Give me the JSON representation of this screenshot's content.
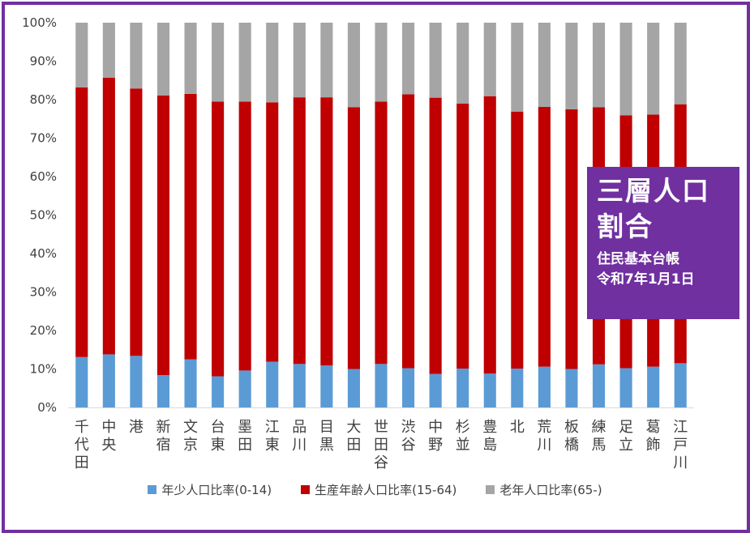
{
  "chart_data": {
    "type": "bar",
    "stacked": true,
    "percent": true,
    "categories": [
      "千代田",
      "中央",
      "港",
      "新宿",
      "文京",
      "台東",
      "墨田",
      "江東",
      "品川",
      "目黒",
      "大田",
      "世田谷",
      "渋谷",
      "中野",
      "杉並",
      "豊島",
      "北",
      "荒川",
      "板橋",
      "練馬",
      "足立",
      "葛飾",
      "江戸川"
    ],
    "series": [
      {
        "name": "年少人口比率(0-14)",
        "color": "#5B9BD5",
        "values": [
          13.1,
          13.8,
          13.4,
          8.4,
          12.5,
          8.1,
          9.6,
          11.9,
          11.3,
          10.9,
          10.0,
          11.3,
          10.2,
          8.7,
          10.1,
          8.8,
          10.1,
          10.6,
          10.0,
          11.2,
          10.2,
          10.6,
          11.5
        ]
      },
      {
        "name": "生産年齢人口比率(15-64)",
        "color": "#C00000",
        "values": [
          70.1,
          71.9,
          69.5,
          72.7,
          69.0,
          71.4,
          69.9,
          67.4,
          69.3,
          69.7,
          68.0,
          68.2,
          71.2,
          71.8,
          68.9,
          72.1,
          66.8,
          67.5,
          67.5,
          66.8,
          65.7,
          65.5,
          67.3
        ]
      },
      {
        "name": "老年人口比率(65-)",
        "color": "#A5A5A5",
        "values": [
          16.8,
          14.3,
          17.1,
          18.9,
          18.5,
          20.5,
          20.5,
          20.7,
          19.4,
          19.4,
          22.0,
          20.5,
          18.6,
          19.5,
          21.0,
          19.1,
          23.1,
          21.9,
          22.5,
          22.0,
          24.1,
          23.9,
          21.2
        ]
      }
    ],
    "yticks": [
      "0%",
      "10%",
      "20%",
      "30%",
      "40%",
      "50%",
      "60%",
      "70%",
      "80%",
      "90%",
      "100%"
    ],
    "ylim": [
      0,
      100
    ],
    "legend_position": "bottom",
    "grid": false
  },
  "title_box": {
    "main_line1": "三層人口",
    "main_line2": "割合",
    "sub_line1": "住民基本台帳",
    "sub_line2": "令和7年1月1日",
    "color": "#7030A0"
  }
}
